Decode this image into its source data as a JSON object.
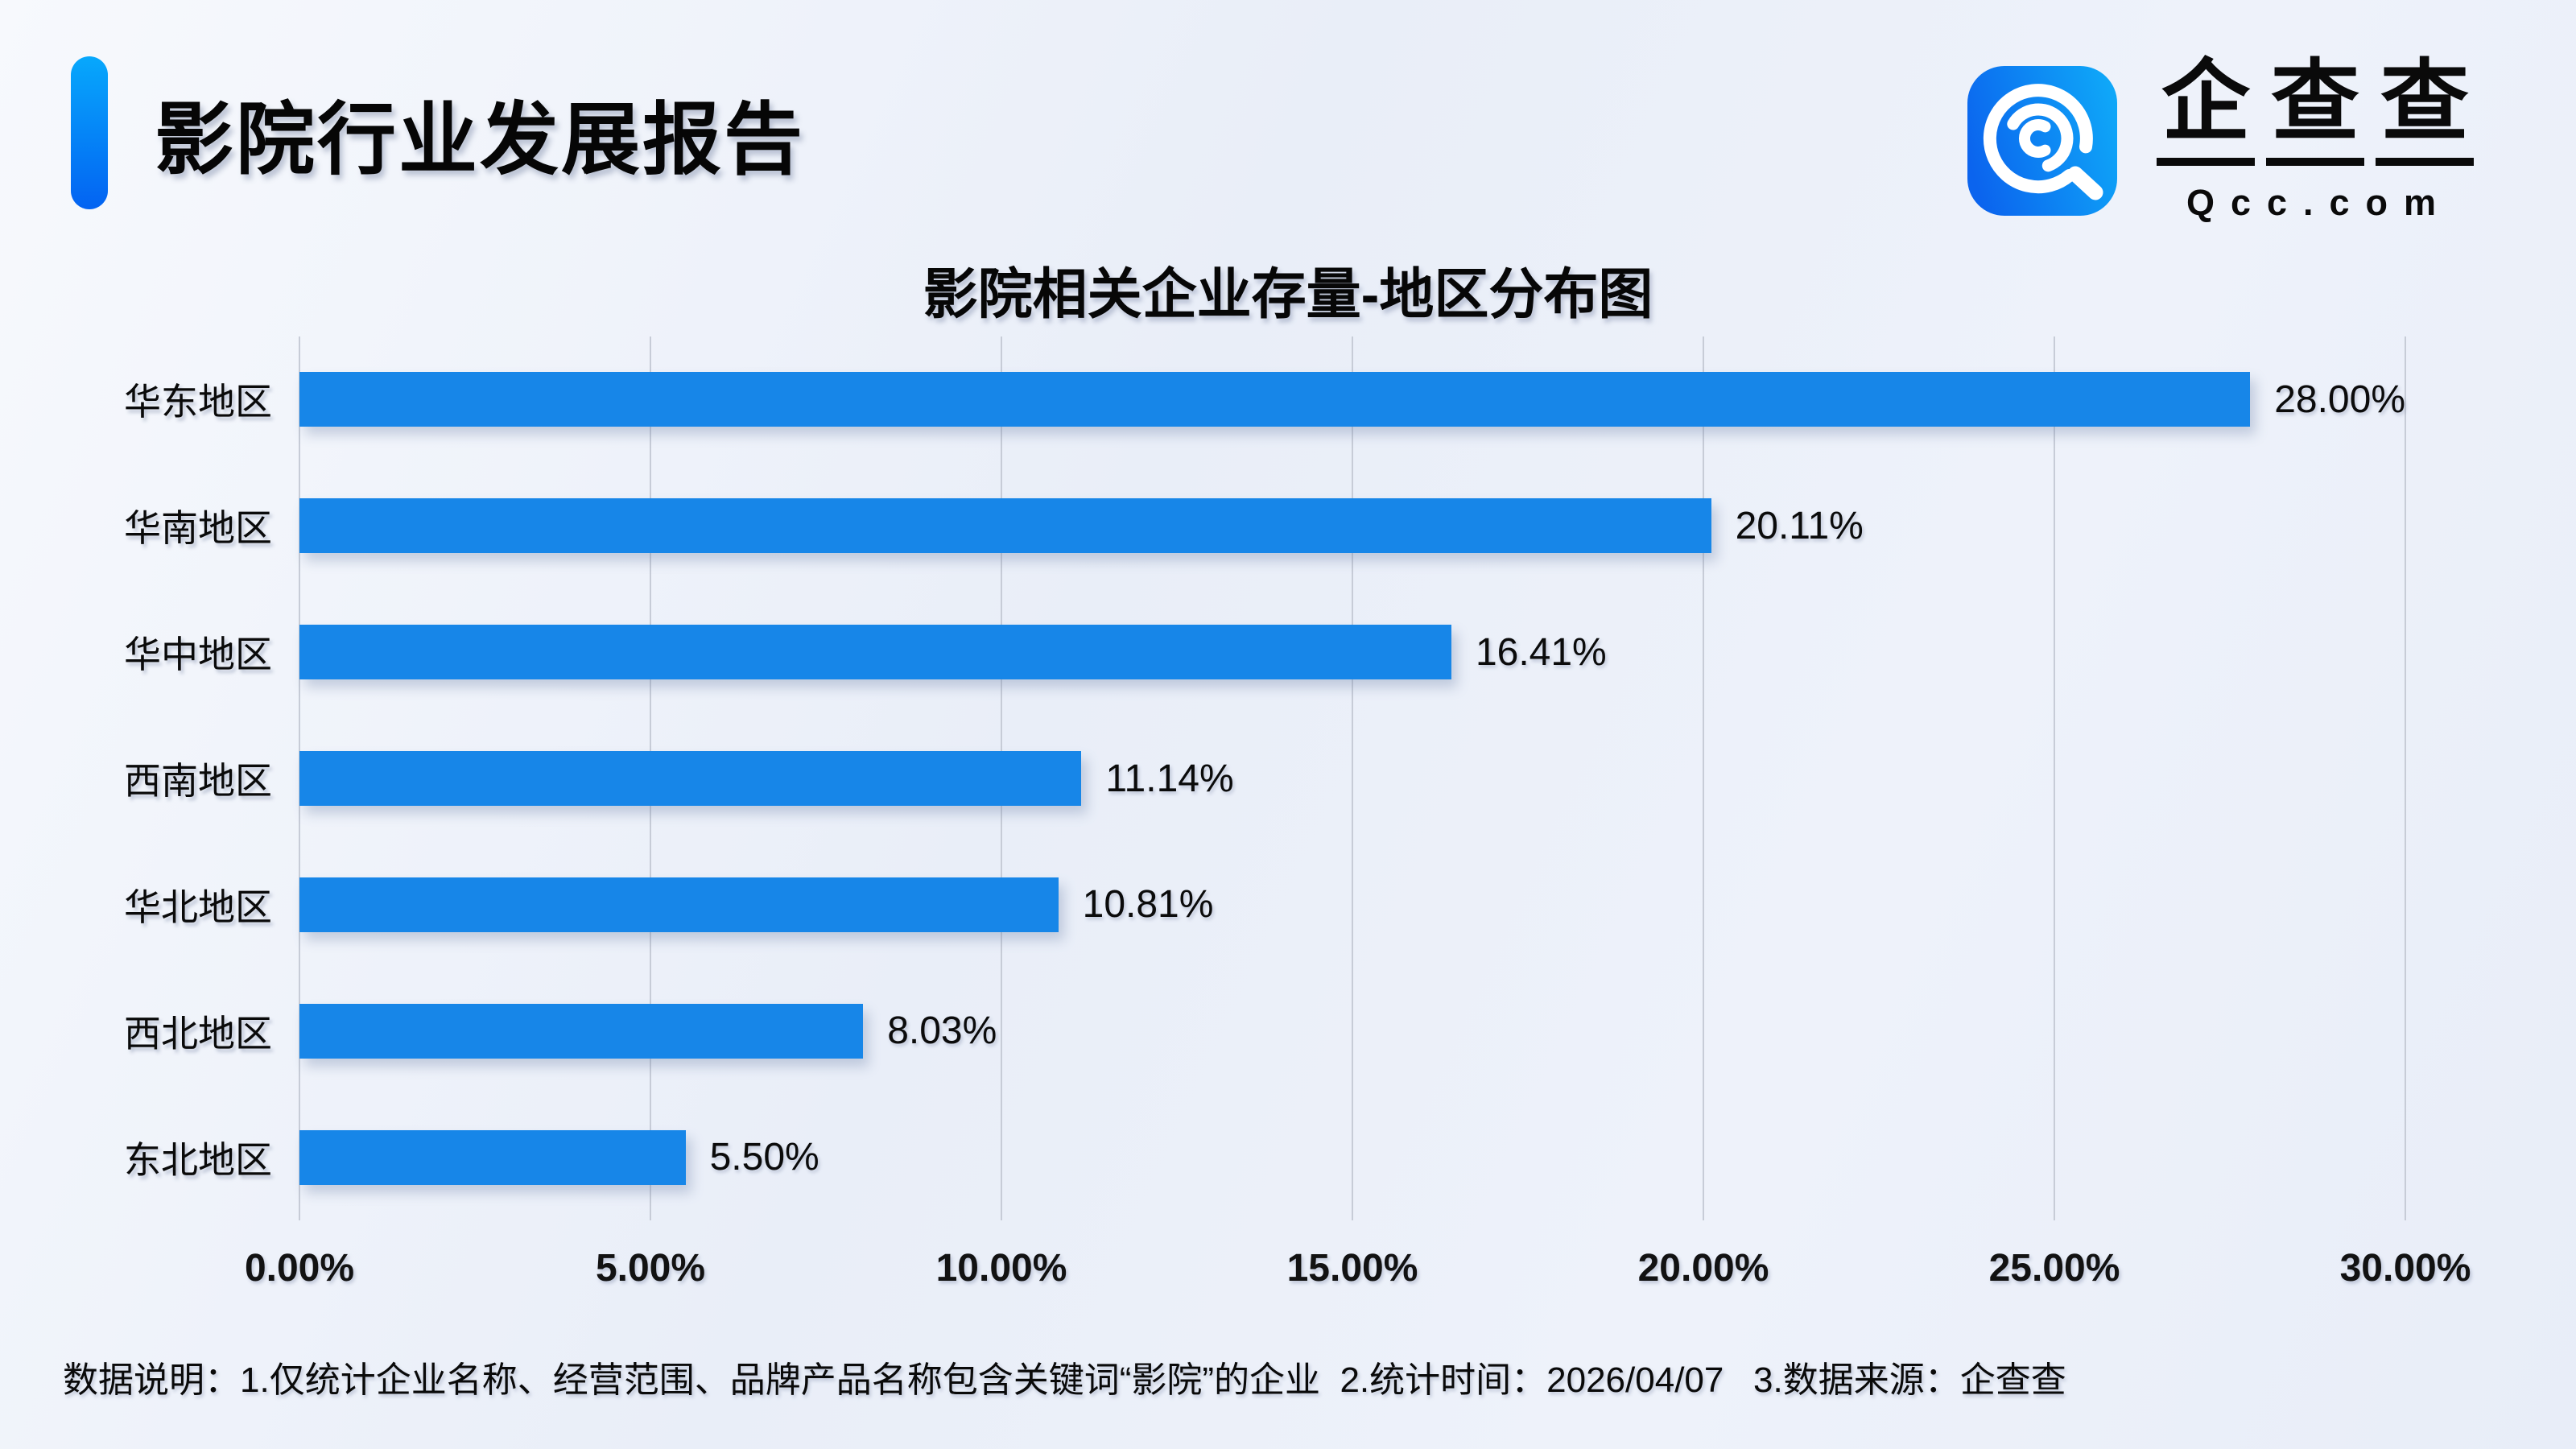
{
  "header": {
    "report_title": "影院行业发展报告",
    "accent_bar": {
      "color_top": "#07a8fc",
      "color_bottom": "#0363f2"
    }
  },
  "logo": {
    "brand": "企查查",
    "domain": "Qcc.com",
    "icon": "qcc-magnifier-icon",
    "icon_gradient": {
      "left": "#0b64ee",
      "right": "#0fa7f8"
    }
  },
  "chart_data": {
    "type": "bar",
    "orientation": "horizontal",
    "title": "影院相关企业存量-地区分布图",
    "categories": [
      "华东地区",
      "华南地区",
      "华中地区",
      "西南地区",
      "华北地区",
      "西北地区",
      "东北地区"
    ],
    "values": [
      28.0,
      20.11,
      16.41,
      11.14,
      10.81,
      8.03,
      5.5
    ],
    "value_labels": [
      "28.00%",
      "20.11%",
      "16.41%",
      "11.14%",
      "10.81%",
      "8.03%",
      "5.50%"
    ],
    "xlim": [
      0,
      30
    ],
    "x_ticks": [
      "0.00%",
      "5.00%",
      "10.00%",
      "15.00%",
      "20.00%",
      "25.00%",
      "30.00%"
    ],
    "xlabel": "",
    "ylabel": "",
    "bar_color": "#1786e8",
    "grid": true,
    "gridline_color": "#c7ccd7",
    "legend": "none"
  },
  "footer": {
    "note": "数据说明：1.仅统计企业名称、经营范围、品牌产品名称包含关键词“影院”的企业  2.统计时间：2026/04/07   3.数据来源：企查查"
  }
}
